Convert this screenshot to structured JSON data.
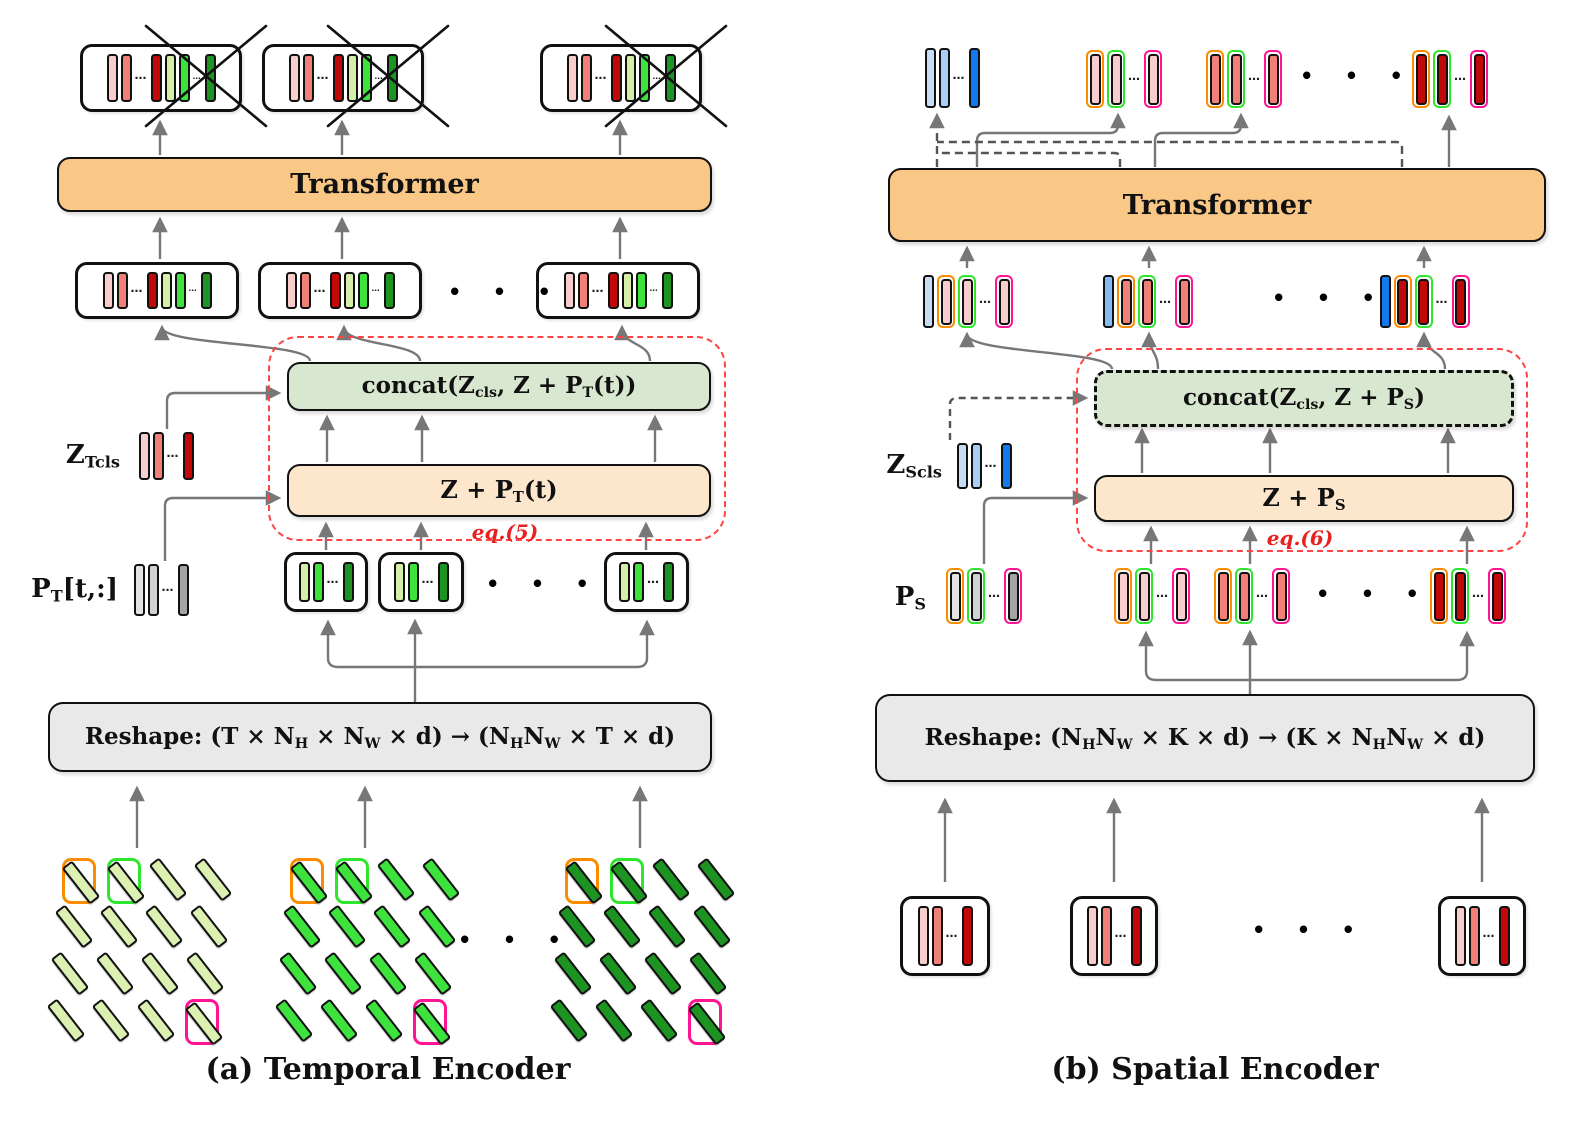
{
  "separators": {
    "inline": "⋯",
    "row": "• • •"
  },
  "colors": {
    "wraps": {
      "orange": "#FB8C00",
      "green": "#2EE62E",
      "magenta": "#FF1493"
    },
    "arrow": "#777777",
    "cross": "#111111",
    "dashed_region": "#FF4545",
    "box_fills": {
      "transformer": "#F9C786",
      "concat": "#D8E8D0",
      "add": "#FCE7CC",
      "reshape": "#E9E9E9"
    },
    "token_fills": {
      "pink_light": "#F7CDCD",
      "salmon": "#F18078",
      "red_dark": "#C30808",
      "green_pale": "#D6EFA8",
      "green_bright": "#3DE23D",
      "green_dark": "#1D9421",
      "blue_light": "#C7DDF6",
      "blue_mid": "#A9CDF3",
      "blue_mid2": "#85BCF1",
      "blue_strong": "#1379EC",
      "gray_light": "#E3E3E3",
      "gray_mid": "#D2D2D2",
      "gray_dark": "#A4A4A4"
    }
  },
  "panels": {
    "a": {
      "caption": "(a) Temporal Encoder",
      "transformer_label": "Transformer",
      "concat_label": "concat(Z_{cls}, Z + P_{T}(t))",
      "add_label": "Z + P_{T}(t)",
      "eq_label": "eq.(5)",
      "reshape_label": "Reshape: (T × N_{H} × N_{W} × d) → (N_{H}N_{W} × T × d)",
      "cls_tokens_label": "Z_{Tcls}",
      "pos_tokens_label": "P_{T}[t,:]"
    },
    "b": {
      "caption": "(b) Spatial Encoder",
      "transformer_label": "Transformer",
      "concat_label": "concat(Z_{cls}, Z + P_{S})",
      "add_label": "Z + P_{S}",
      "eq_label": "eq.(6)",
      "reshape_label": "Reshape: (N_{H}N_{W} × K × d) → (K × N_{H}N_{W} × d)",
      "cls_tokens_label": "Z_{Scls}",
      "pos_tokens_label": "P_{S}"
    }
  },
  "token_sets": {
    "temporal_full": [
      {
        "fill": "#F7CDCD"
      },
      {
        "fill": "#F18078"
      },
      {
        "dots": true
      },
      {
        "fill": "#C30808"
      },
      {
        "fill": "#D6EFA8"
      },
      {
        "fill": "#3DE23D"
      },
      {
        "dots": true,
        "small": true
      },
      {
        "fill": "#1D9421"
      }
    ],
    "green_triplet": [
      {
        "fill": "#D6EFA8"
      },
      {
        "fill": "#3DE23D"
      },
      {
        "dots": true
      },
      {
        "fill": "#1D9421"
      }
    ],
    "t_cls": [
      {
        "fill": "#F7CDCD"
      },
      {
        "fill": "#F18078"
      },
      {
        "dots": true
      },
      {
        "fill": "#C30808"
      }
    ],
    "t_pos": [
      {
        "fill": "#E3E3E3"
      },
      {
        "fill": "#D2D2D2"
      },
      {
        "dots": true
      },
      {
        "fill": "#A4A4A4"
      }
    ],
    "s_cls": [
      {
        "fill": "#C7DDF6"
      },
      {
        "fill": "#A9CDF3"
      },
      {
        "dots": true
      },
      {
        "fill": "#1379EC"
      }
    ],
    "s_pos": [
      {
        "fill": "#E3E3E3",
        "wrap": "orange"
      },
      {
        "fill": "#D2D2D2",
        "wrap": "green"
      },
      {
        "dots": true
      },
      {
        "fill": "#A4A4A4",
        "wrap": "magenta"
      }
    ],
    "frame1_tokens": [
      {
        "fill": "#F7CDCD",
        "wrap": "orange"
      },
      {
        "fill": "#F7CDCD",
        "wrap": "green"
      },
      {
        "dots": true
      },
      {
        "fill": "#F7CDCD",
        "wrap": "magenta"
      }
    ],
    "frame2_tokens": [
      {
        "fill": "#F18078",
        "wrap": "orange"
      },
      {
        "fill": "#F18078",
        "wrap": "green"
      },
      {
        "dots": true
      },
      {
        "fill": "#F18078",
        "wrap": "magenta"
      }
    ],
    "frameK_tokens": [
      {
        "fill": "#C30808",
        "wrap": "orange"
      },
      {
        "fill": "#C30808",
        "wrap": "green"
      },
      {
        "dots": true
      },
      {
        "fill": "#C30808",
        "wrap": "magenta"
      }
    ],
    "spatial_in_1": [
      {
        "fill": "#C7DDF6"
      },
      {
        "fill": "#F7CDCD",
        "wrap": "orange"
      },
      {
        "fill": "#F7CDCD",
        "wrap": "green"
      },
      {
        "dots": true
      },
      {
        "fill": "#F7CDCD",
        "wrap": "magenta"
      }
    ],
    "spatial_in_2": [
      {
        "fill": "#85BCF1"
      },
      {
        "fill": "#F18078",
        "wrap": "orange"
      },
      {
        "fill": "#F18078",
        "wrap": "green"
      },
      {
        "dots": true
      },
      {
        "fill": "#F18078",
        "wrap": "magenta"
      }
    ],
    "spatial_in_K": [
      {
        "fill": "#1379EC"
      },
      {
        "fill": "#C30808",
        "wrap": "orange"
      },
      {
        "fill": "#C30808",
        "wrap": "green"
      },
      {
        "dots": true
      },
      {
        "fill": "#C30808",
        "wrap": "magenta"
      }
    ],
    "patch_triplet_pink": [
      {
        "fill": "#F7CDCD"
      },
      {
        "fill": "#F18078"
      },
      {
        "dots": true
      },
      {
        "fill": "#C30808"
      }
    ]
  },
  "grids": [
    {
      "fill": "#DCF0B2",
      "outlines": {
        "0": "orange",
        "1": "green",
        "15": "magenta"
      }
    },
    {
      "fill": "#3DE23D",
      "outlines": {
        "0": "orange",
        "1": "green",
        "15": "magenta"
      }
    },
    {
      "fill": "#1D9421",
      "outlines": {
        "0": "orange",
        "1": "green",
        "15": "magenta"
      }
    }
  ]
}
